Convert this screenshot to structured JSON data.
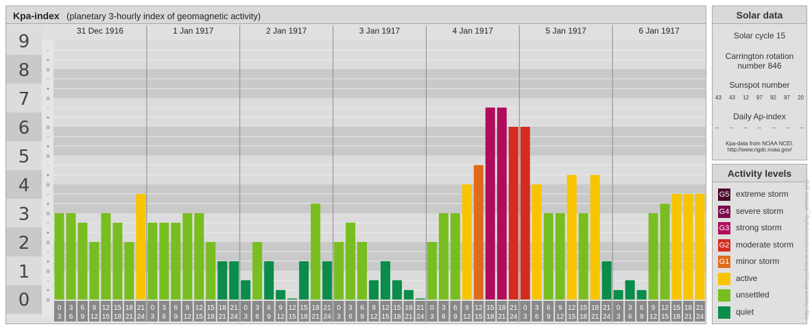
{
  "main": {
    "title": "Kpa-index",
    "subtitle": "(planetary 3-hourly index of geomagnetic activity)"
  },
  "chart_data": {
    "type": "bar",
    "title": "Kpa-index",
    "subtitle": "(planetary 3-hourly index of geomagnetic activity)",
    "ylim": [
      0,
      9
    ],
    "y_ticks": [
      "0",
      "1",
      "2",
      "3",
      "4",
      "5",
      "6",
      "7",
      "8",
      "9"
    ],
    "minor_ticks": [
      "o",
      "+",
      "-"
    ],
    "days": [
      "31 Dec 1916",
      "1 Jan 1917",
      "2 Jan 1917",
      "3 Jan 1917",
      "4 Jan 1917",
      "5 Jan 1917",
      "6 Jan 1917"
    ],
    "interval_start": [
      "0",
      "3",
      "6",
      "9",
      "12",
      "15",
      "18",
      "21"
    ],
    "interval_end": [
      "3",
      "6",
      "9",
      "12",
      "15",
      "18",
      "21",
      "24"
    ],
    "values": [
      3.0,
      3.0,
      2.67,
      2.0,
      3.0,
      2.67,
      2.0,
      3.67,
      2.67,
      2.67,
      2.67,
      3.0,
      3.0,
      2.0,
      1.33,
      1.33,
      0.67,
      2.0,
      1.33,
      0.33,
      0.0,
      1.33,
      3.33,
      1.33,
      2.0,
      2.67,
      2.0,
      0.67,
      1.33,
      0.67,
      0.33,
      0.0,
      2.0,
      3.0,
      3.0,
      4.0,
      4.67,
      6.67,
      6.67,
      6.0,
      6.0,
      4.0,
      3.0,
      3.0,
      4.33,
      3.0,
      4.33,
      1.33,
      0.33,
      0.67,
      0.33,
      3.0,
      3.33,
      3.67,
      3.67,
      3.67
    ]
  },
  "solar": {
    "header": "Solar data",
    "cycle": "Solar cycle 15",
    "carrington_1": "Carrington rotation",
    "carrington_2": "number 846",
    "sunspot_label": "Sunspot number",
    "sunspots": [
      "43",
      "43",
      "12",
      "97",
      "92",
      "97",
      "20"
    ],
    "ap_label": "Daily Ap-index",
    "ap_values": [
      "--",
      "--",
      "--",
      "--",
      "--",
      "--",
      "--"
    ],
    "source_1": "Kpa-data from NOAA NCEI:",
    "source_2": "http://www.ngdc.noaa.gov/"
  },
  "activity": {
    "header": "Activity levels",
    "items": [
      {
        "badge": "G5",
        "label": "extreme storm",
        "color": "#4a0a2a"
      },
      {
        "badge": "G4",
        "label": "severe storm",
        "color": "#7a0c4e"
      },
      {
        "badge": "G3",
        "label": "strong storm",
        "color": "#b00c5c"
      },
      {
        "badge": "G2",
        "label": "moderate storm",
        "color": "#d42c20"
      },
      {
        "badge": "G1",
        "label": "minor storm",
        "color": "#e06a1c"
      },
      {
        "badge": "",
        "label": "active",
        "color": "#f8c400"
      },
      {
        "badge": "",
        "label": "unsettled",
        "color": "#78be20"
      },
      {
        "badge": "",
        "label": "quiet",
        "color": "#0a8c4a"
      }
    ]
  },
  "watermark": "http://www.theusefultear.info/aurora/kp_archive.php"
}
